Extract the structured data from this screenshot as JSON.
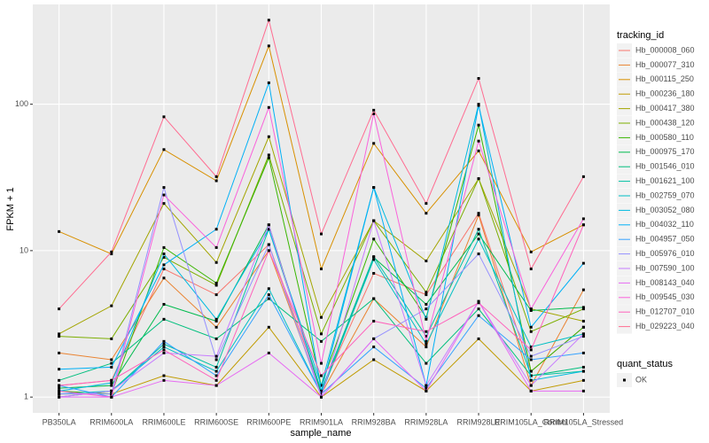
{
  "chart_data": {
    "type": "line",
    "log_y": true,
    "grid": true,
    "background": "#ebebeb",
    "x_label": "sample_name",
    "y_label": "FPKM + 1",
    "categories": [
      "PB350LA",
      "RRIM600LA",
      "RRIM600LE",
      "RRIM600SE",
      "RRIM600PE",
      "RRIM901LA",
      "RRIM928BA",
      "RRIM928LA",
      "RRIM928LE",
      "RRIM105LA_Control",
      "RRIM105LA_Stressed"
    ],
    "ylim": [
      0.78,
      480
    ],
    "yticks": [
      1,
      10,
      100
    ],
    "legend_title": "tracking_id",
    "legend_position": "right",
    "shape_legend": {
      "title": "quant_status",
      "entries": [
        "OK"
      ]
    },
    "series": [
      {
        "name": "Hb_000008_060",
        "color": "#F8766D",
        "values": [
          1.2,
          1.3,
          7.5,
          5,
          11,
          1.1,
          7,
          5,
          18,
          1.5,
          3
        ]
      },
      {
        "name": "Hb_000077_310",
        "color": "#EA8331",
        "values": [
          2,
          1.8,
          6.5,
          3,
          10,
          1.05,
          4.7,
          2.2,
          17.5,
          1.2,
          5.4
        ]
      },
      {
        "name": "Hb_000115_250",
        "color": "#D89000",
        "values": [
          13.5,
          9.5,
          49,
          30,
          250,
          7.5,
          54,
          18,
          48,
          9.8,
          15
        ]
      },
      {
        "name": "Hb_000236_180",
        "color": "#C09B00",
        "values": [
          1.05,
          1.05,
          1.4,
          1.2,
          3,
          1,
          1.8,
          1.1,
          2.5,
          1.1,
          1.3
        ]
      },
      {
        "name": "Hb_000417_380",
        "color": "#A3A500",
        "values": [
          2.7,
          4.2,
          21,
          8.3,
          60,
          3.5,
          16,
          8.5,
          31,
          4,
          3.3
        ]
      },
      {
        "name": "Hb_000438_120",
        "color": "#7CAE00",
        "values": [
          2.6,
          2.5,
          9,
          5.8,
          45,
          2.7,
          16,
          5.2,
          31,
          2.8,
          4
        ]
      },
      {
        "name": "Hb_000580_110",
        "color": "#39B600",
        "values": [
          1.1,
          1.05,
          10.5,
          6,
          43,
          1.2,
          12,
          3.5,
          72,
          1.5,
          3
        ]
      },
      {
        "name": "Hb_000975_170",
        "color": "#00BB4E",
        "values": [
          1.15,
          1.2,
          4.3,
          3.3,
          15,
          1.05,
          9,
          4.3,
          13,
          3.9,
          4.1
        ]
      },
      {
        "name": "Hb_001546_010",
        "color": "#00BF7D",
        "values": [
          1.3,
          1.7,
          3.4,
          2.5,
          4.7,
          2.4,
          4.7,
          1.7,
          4,
          1.4,
          1.6
        ]
      },
      {
        "name": "Hb_001621_100",
        "color": "#00C1A3",
        "values": [
          1,
          1.1,
          2.3,
          1.6,
          14,
          1.1,
          9.1,
          2.6,
          14,
          1.4,
          1.5
        ]
      },
      {
        "name": "Hb_002759_070",
        "color": "#00BFC4",
        "values": [
          1.05,
          1.1,
          2.2,
          1.5,
          5.5,
          1.05,
          8.7,
          2.3,
          12,
          2.2,
          2.7
        ]
      },
      {
        "name": "Hb_003052_080",
        "color": "#00BAE0",
        "values": [
          1.1,
          1.25,
          9.5,
          3.4,
          14,
          1.2,
          27,
          3.4,
          100,
          1.3,
          1.5
        ]
      },
      {
        "name": "Hb_004032_110",
        "color": "#00B0F6",
        "values": [
          1.55,
          1.6,
          8,
          14,
          140,
          1.1,
          27,
          1.2,
          98,
          3,
          8.2
        ]
      },
      {
        "name": "Hb_004957_050",
        "color": "#35A2FF",
        "values": [
          1.2,
          1,
          2.4,
          1.4,
          5,
          1.05,
          2.2,
          1.15,
          3.6,
          1.8,
          2
        ]
      },
      {
        "name": "Hb_005976_010",
        "color": "#9590FF",
        "values": [
          1.05,
          1.05,
          27,
          1.8,
          11,
          1,
          2.5,
          4,
          9.5,
          1.9,
          2.6
        ]
      },
      {
        "name": "Hb_007590_100",
        "color": "#C77CFF",
        "values": [
          1,
          1.1,
          2,
          1.9,
          15,
          1,
          16,
          1.2,
          4.5,
          1.2,
          2.7
        ]
      },
      {
        "name": "Hb_008143_040",
        "color": "#E76BF3",
        "values": [
          1,
          1,
          1.3,
          1.2,
          2,
          1,
          2.5,
          1.1,
          4.5,
          1.1,
          1.1
        ]
      },
      {
        "name": "Hb_009545_030",
        "color": "#FA62DB",
        "values": [
          1.1,
          1,
          24,
          10.5,
          95,
          1.7,
          86,
          2.4,
          56,
          4,
          16.5
        ]
      },
      {
        "name": "Hb_012707_010",
        "color": "#FF62BC",
        "values": [
          1.2,
          1.3,
          2.1,
          1.3,
          10,
          1.4,
          3.3,
          2.8,
          4.4,
          2.1,
          15
        ]
      },
      {
        "name": "Hb_029223_040",
        "color": "#FF6C91",
        "values": [
          4,
          9.8,
          82,
          32,
          375,
          13,
          91,
          21,
          150,
          7.5,
          32
        ]
      }
    ]
  }
}
